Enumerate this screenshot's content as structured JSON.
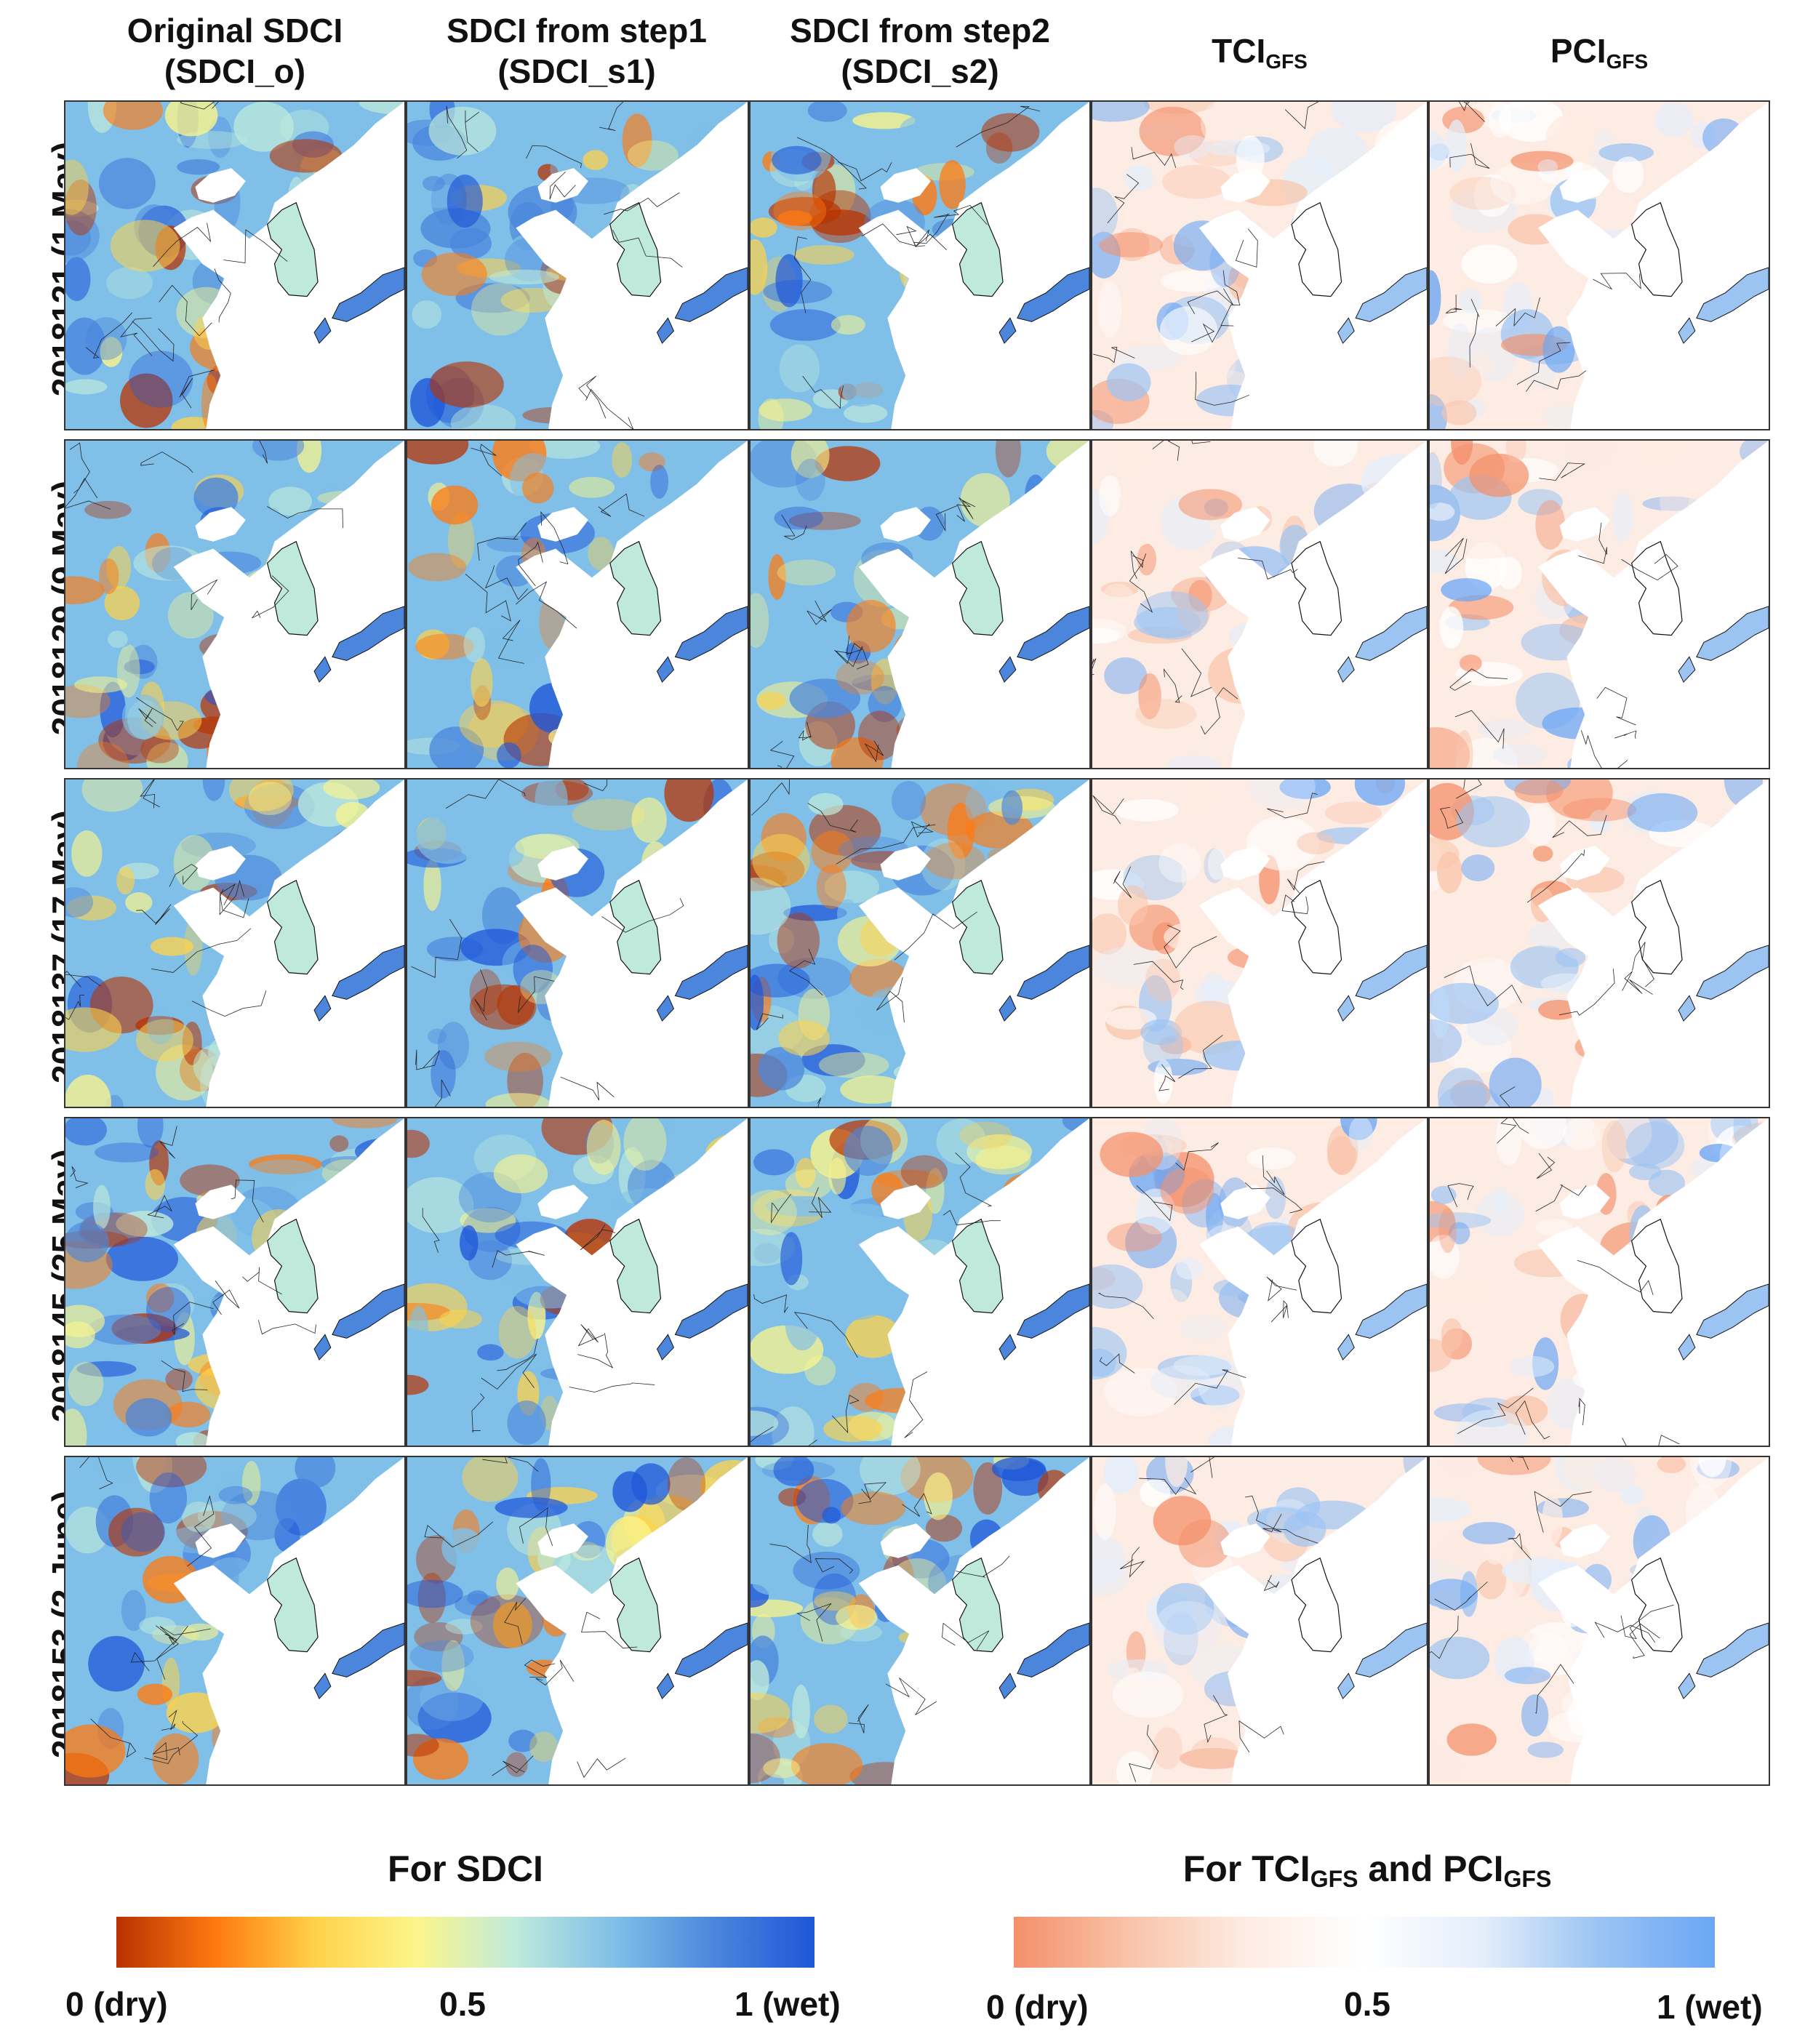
{
  "columns": [
    {
      "line1": "Original SDCI",
      "line2": "(SDCI_o)"
    },
    {
      "line1": "SDCI from step1",
      "line2": "(SDCI_s1)"
    },
    {
      "line1": "SDCI from step2",
      "line2": "(SDCI_s2)"
    },
    {
      "main": "TCI",
      "sub": "GFS"
    },
    {
      "main": "PCI",
      "sub": "GFS"
    }
  ],
  "rows": [
    {
      "label": "2018121 (1 May)"
    },
    {
      "label": "2018129 (9 May)"
    },
    {
      "label": "2018137 (17 May)"
    },
    {
      "label": "2018145 (25 May)"
    },
    {
      "label": "2018153 (2 June)"
    }
  ],
  "legend_sdci": {
    "title": "For SDCI",
    "tick_min": "0 (dry)",
    "tick_mid": "0.5",
    "tick_max": "1 (wet)",
    "colors": [
      "#b83200",
      "#ff7a10",
      "#ffd24a",
      "#fcf58a",
      "#bfeadb",
      "#7fbfe8",
      "#4b86dc",
      "#1e56d8"
    ]
  },
  "legend_gfs": {
    "title_parts": [
      "For TCI",
      "GFS",
      " and PCI",
      "GFS"
    ],
    "tick_min": "0 (dry)",
    "tick_mid": "0.5",
    "tick_max": "1 (wet)",
    "colors": [
      "#f4906a",
      "#f9c4aa",
      "#fdece3",
      "#ffffff",
      "#e4eefb",
      "#9cc4f3",
      "#6aa6f5"
    ]
  }
}
